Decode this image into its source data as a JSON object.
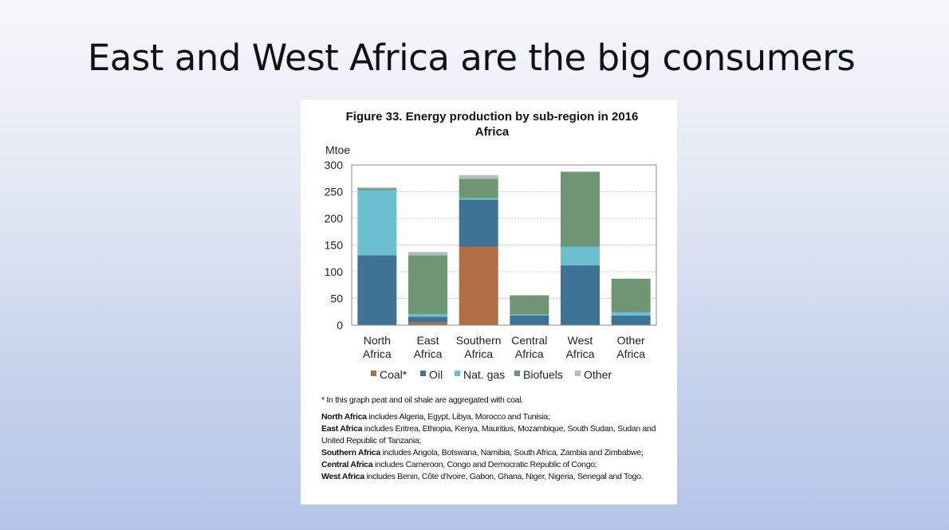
{
  "slide": {
    "title": "East and West Africa are the big consumers"
  },
  "colors": {
    "Coal*": "#b16e44",
    "Oil": "#3e7395",
    "Nat. gas": "#6cbfcf",
    "Biofuels": "#6e9673",
    "Other": "#b8bcc2"
  },
  "chart_data": {
    "type": "bar",
    "stacked": true,
    "title": "Figure 33. Energy production by sub-region in 2016",
    "subtitle": "Africa",
    "ylabel": "Mtoe",
    "xlabel": "",
    "ylim": [
      0,
      300
    ],
    "yticks": [
      "0",
      "50",
      "100",
      "150",
      "200",
      "250",
      "300"
    ],
    "grid": true,
    "legend_position": "bottom",
    "categories": [
      [
        "North",
        "Africa"
      ],
      [
        "East",
        "Africa"
      ],
      [
        "Southern",
        "Africa"
      ],
      [
        "Central",
        "Africa"
      ],
      [
        "West",
        "Africa"
      ],
      [
        "Other",
        "Africa"
      ]
    ],
    "series": [
      {
        "name": "Coal*",
        "values": [
          0,
          5,
          147,
          0,
          0,
          0
        ]
      },
      {
        "name": "Oil",
        "values": [
          131,
          11,
          88,
          18,
          112,
          18
        ]
      },
      {
        "name": "Nat. gas",
        "values": [
          122,
          5,
          3,
          2,
          35,
          6
        ]
      },
      {
        "name": "Biofuels",
        "values": [
          3,
          110,
          36,
          36,
          140,
          63
        ]
      },
      {
        "name": "Other",
        "values": [
          2,
          6,
          7,
          0,
          1,
          0
        ]
      }
    ]
  },
  "notes": {
    "footnote": "* In this graph peat and oil shale are aggregated with coal.",
    "regions": [
      {
        "name": "North Africa",
        "text": " includes Algeria, Egypt, Libya, Morocco and Tunisia;"
      },
      {
        "name": "East Africa",
        "text": " includes Eritrea, Ethiopia, Kenya, Mauritius, Mozambique, South Sudan, Sudan and United Republic of Tanzania;"
      },
      {
        "name": "Southern Africa",
        "text": " includes Angola, Botswana, Namibia, South Africa, Zambia and Zimbabwe;"
      },
      {
        "name": "Central Africa",
        "text": " includes Cameroon, Congo and Democratic Republic of Congo;"
      },
      {
        "name": "West Africa",
        "text": " includes Benin, Côte d'Ivoire, Gabon, Ghana, Niger, Nigeria, Senegal and Togo."
      }
    ]
  }
}
